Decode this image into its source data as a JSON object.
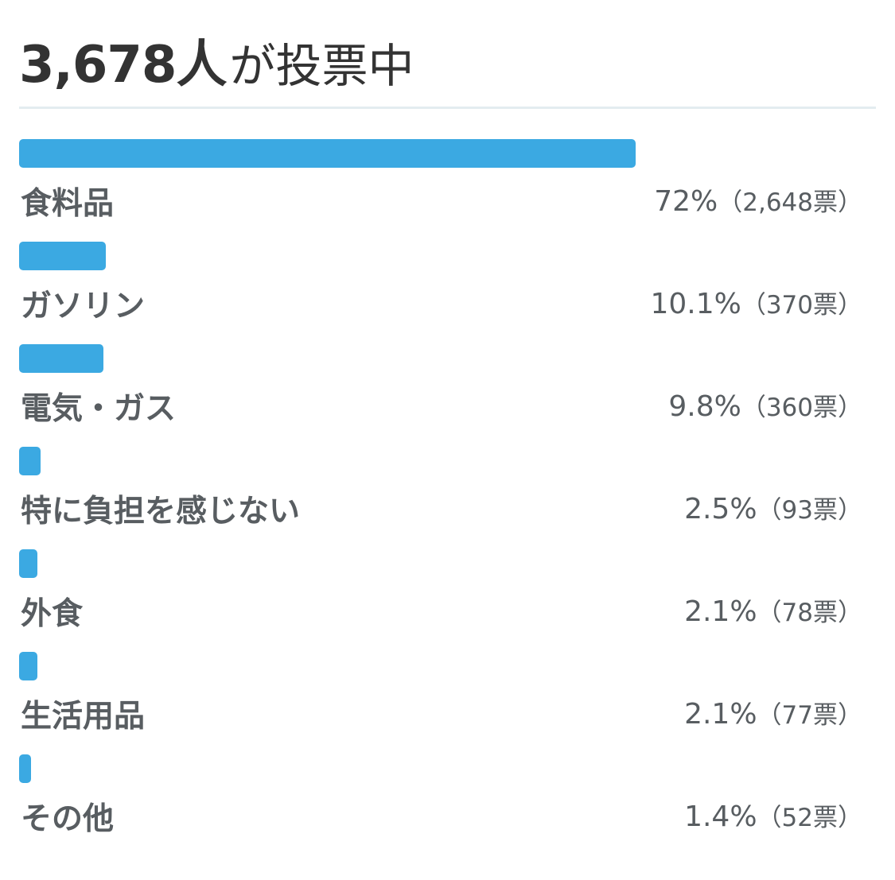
{
  "poll": {
    "voter_count": "3,678人",
    "voter_suffix": "が投票中",
    "options": [
      {
        "label": "食料品",
        "percent_text": "72%",
        "votes_text": "（2,648票）",
        "percent": 72,
        "votes": 2648
      },
      {
        "label": "ガソリン",
        "percent_text": "10.1%",
        "votes_text": "（370票）",
        "percent": 10.1,
        "votes": 370
      },
      {
        "label": "電気・ガス",
        "percent_text": "9.8%",
        "votes_text": "（360票）",
        "percent": 9.8,
        "votes": 360
      },
      {
        "label": "特に負担を感じない",
        "percent_text": "2.5%",
        "votes_text": "（93票）",
        "percent": 2.5,
        "votes": 93
      },
      {
        "label": "外食",
        "percent_text": "2.1%",
        "votes_text": "（78票）",
        "percent": 2.1,
        "votes": 78
      },
      {
        "label": "生活用品",
        "percent_text": "2.1%",
        "votes_text": "（77票）",
        "percent": 2.1,
        "votes": 77
      },
      {
        "label": "その他",
        "percent_text": "1.4%",
        "votes_text": "（52票）",
        "percent": 1.4,
        "votes": 52
      }
    ]
  },
  "colors": {
    "bar": "#3ba9e2",
    "divider": "#e3ecf0",
    "title": "#333333",
    "text": "#585d61"
  }
}
